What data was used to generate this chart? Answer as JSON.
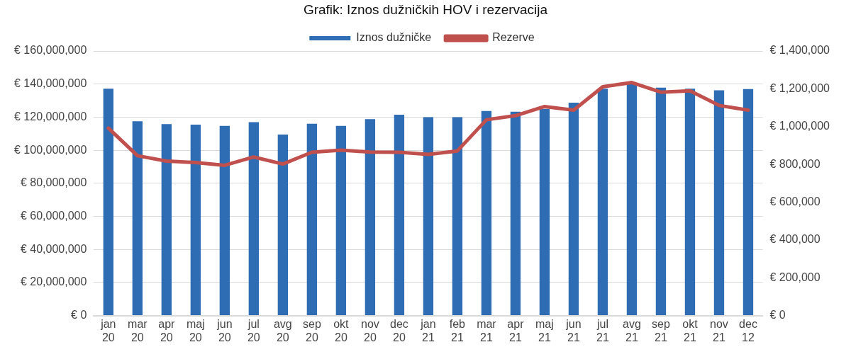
{
  "chart_data": {
    "type": "bar",
    "title": "Grafik: Iznos dužničkih HOV i rezervacija",
    "categories": [
      "jan\n20",
      "mar\n20",
      "apr\n20",
      "maj\n20",
      "jun\n20",
      "jul\n20",
      "avg\n20",
      "sep\n20",
      "okt\n20",
      "nov\n20",
      "dec\n20",
      "jan\n21",
      "feb\n21",
      "mar\n21",
      "apr\n21",
      "maj\n21",
      "jun\n21",
      "jul\n21",
      "avg\n21",
      "sep\n21",
      "okt\n21",
      "nov\n21",
      "dec\n12"
    ],
    "series": [
      {
        "name": "Iznos dužničke",
        "color": "#2e6db4",
        "values": [
          137200000,
          117500000,
          115800000,
          115500000,
          114700000,
          117000000,
          109500000,
          116000000,
          114700000,
          118800000,
          121500000,
          120000000,
          120000000,
          123700000,
          123300000,
          125000000,
          128700000,
          137200000,
          140800000,
          137800000,
          137200000,
          136200000,
          137000000
        ]
      },
      {
        "name": "Rezerve",
        "type": "line",
        "axis": "y2",
        "color": "#c0504d",
        "values": [
          992000,
          846000,
          817000,
          810000,
          795000,
          839000,
          802000,
          864000,
          875000,
          865000,
          864000,
          853000,
          871000,
          1036000,
          1058000,
          1106000,
          1087000,
          1211000,
          1233000,
          1182000,
          1189000,
          1112000,
          1087000
        ]
      }
    ],
    "ylim": [
      0,
      160000000
    ],
    "yticks": [
      {
        "value": 0,
        "label": "€ 0"
      },
      {
        "value": 20000000,
        "label": "€ 20,000,000"
      },
      {
        "value": 40000000,
        "label": "€ 40,000,000"
      },
      {
        "value": 60000000,
        "label": "€ 60,000,000"
      },
      {
        "value": 80000000,
        "label": "€ 80,000,000"
      },
      {
        "value": 100000000,
        "label": "€ 100,000,000"
      },
      {
        "value": 120000000,
        "label": "€ 120,000,000"
      },
      {
        "value": 140000000,
        "label": "€ 140,000,000"
      },
      {
        "value": 160000000,
        "label": "€ 160,000,000"
      }
    ],
    "y2lim": [
      0,
      1400000
    ],
    "y2ticks": [
      {
        "value": 0,
        "label": "€ 0"
      },
      {
        "value": 200000,
        "label": "€ 200,000"
      },
      {
        "value": 400000,
        "label": "€ 400,000"
      },
      {
        "value": 600000,
        "label": "€ 600,000"
      },
      {
        "value": 800000,
        "label": "€ 800,000"
      },
      {
        "value": 1000000,
        "label": "€ 1,000,000"
      },
      {
        "value": 1200000,
        "label": "€ 1,200,000"
      },
      {
        "value": 1400000,
        "label": "€ 1,400,000"
      }
    ],
    "grid": "y",
    "legend": "top",
    "marker": "none",
    "line_style": "solid"
  }
}
